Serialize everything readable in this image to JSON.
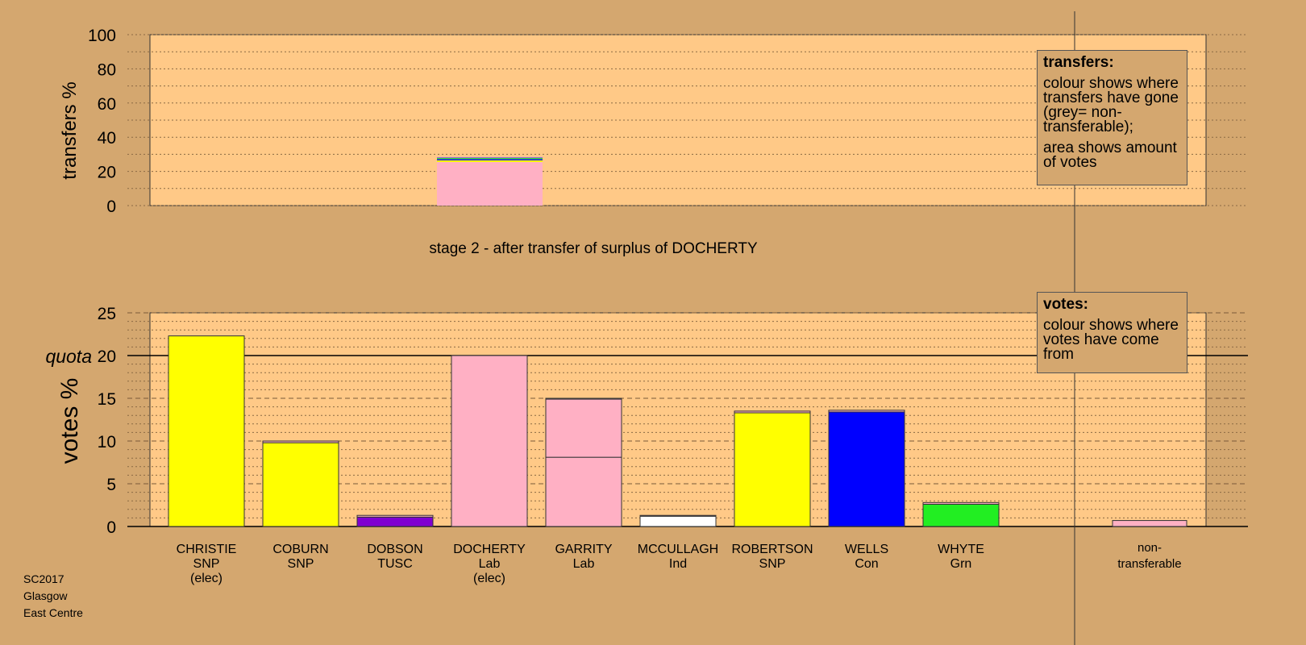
{
  "top_chart": {
    "ylabel": "transfers %",
    "yticks": [
      "0",
      "20",
      "40",
      "60",
      "80",
      "100"
    ],
    "legend": {
      "title": "transfers:",
      "paragraphs": [
        "colour shows where transfers have gone (grey= non-transferable);",
        "area shows amount of votes"
      ]
    }
  },
  "stage_title": "stage 2 - after transfer of surplus of DOCHERTY",
  "bottom_chart": {
    "ylabel": "votes %",
    "quota_label": "quota",
    "yticks": [
      "0",
      "5",
      "10",
      "15",
      "20",
      "25"
    ],
    "legend": {
      "title": "votes:",
      "paragraphs": [
        "colour shows where votes have come from"
      ]
    }
  },
  "candidates": [
    {
      "name": "CHRISTIE",
      "party": "SNP",
      "status": "(elec)"
    },
    {
      "name": "COBURN",
      "party": "SNP",
      "status": ""
    },
    {
      "name": "DOBSON",
      "party": "TUSC",
      "status": ""
    },
    {
      "name": "DOCHERTY",
      "party": "Lab",
      "status": "(elec)"
    },
    {
      "name": "GARRITY",
      "party": "Lab",
      "status": ""
    },
    {
      "name": "MCCULLAGH",
      "party": "Ind",
      "status": ""
    },
    {
      "name": "ROBERTSON",
      "party": "SNP",
      "status": ""
    },
    {
      "name": "WELLS",
      "party": "Con",
      "status": ""
    },
    {
      "name": "WHYTE",
      "party": "Grn",
      "status": ""
    }
  ],
  "nontransferable": {
    "line1": "non-",
    "line2": "transferable"
  },
  "footer": {
    "line1": "SC2017",
    "line2": "Glasgow",
    "line3": "East Centre"
  },
  "colors": {
    "background": "#d4a76f",
    "plot": "#ffc987",
    "SNP": "#ffff00",
    "Lab": "#ffb0c4",
    "TUSC": "#8000d0",
    "Ind": "#ffffff",
    "Con": "#0000ff",
    "Grn": "#22ee22",
    "nontransferable": "#c8c8c8"
  },
  "chart_data": [
    {
      "type": "bar",
      "title": "",
      "ylabel": "transfers %",
      "ylim": [
        0,
        100
      ],
      "grid": true,
      "legend_position": "top-right",
      "series": [
        {
          "category": "DOCHERTY",
          "segments": [
            {
              "party": "Lab",
              "value": 25.5
            },
            {
              "party": "SNP",
              "value": 1.0
            },
            {
              "party": "Con",
              "value": 0.7
            },
            {
              "party": "Grn",
              "value": 0.6
            },
            {
              "party": "TUSC",
              "value": 0.3
            },
            {
              "party": "nontransferable",
              "value": 0.4
            }
          ]
        }
      ]
    },
    {
      "type": "bar",
      "title": "stage 2 - after transfer of surplus of DOCHERTY",
      "ylabel": "votes %",
      "ylim": [
        0,
        25
      ],
      "quota": 20,
      "grid": true,
      "legend_position": "top-right",
      "categories": [
        "CHRISTIE",
        "COBURN",
        "DOBSON",
        "DOCHERTY",
        "GARRITY",
        "MCCULLAGH",
        "ROBERTSON",
        "WELLS",
        "WHYTE",
        "non-transferable"
      ],
      "bars": [
        {
          "category": "CHRISTIE",
          "segments": [
            {
              "party": "SNP",
              "value": 22.3
            }
          ]
        },
        {
          "category": "COBURN",
          "segments": [
            {
              "party": "SNP",
              "value": 9.8
            },
            {
              "party": "Lab",
              "value": 0.2
            }
          ]
        },
        {
          "category": "DOBSON",
          "segments": [
            {
              "party": "TUSC",
              "value": 1.1
            },
            {
              "party": "Lab",
              "value": 0.2
            }
          ]
        },
        {
          "category": "DOCHERTY",
          "segments": [
            {
              "party": "Lab",
              "value": 20.0
            }
          ]
        },
        {
          "category": "GARRITY",
          "segments": [
            {
              "party": "Lab",
              "value": 8.1
            },
            {
              "party": "Lab",
              "value": 6.8
            },
            {
              "party": "Lab",
              "value": 0.1
            }
          ]
        },
        {
          "category": "MCCULLAGH",
          "segments": [
            {
              "party": "Ind",
              "value": 1.2
            },
            {
              "party": "Lab",
              "value": 0.1
            }
          ]
        },
        {
          "category": "ROBERTSON",
          "segments": [
            {
              "party": "SNP",
              "value": 13.3
            },
            {
              "party": "Lab",
              "value": 0.2
            }
          ]
        },
        {
          "category": "WELLS",
          "segments": [
            {
              "party": "Con",
              "value": 13.4
            },
            {
              "party": "Lab",
              "value": 0.2
            }
          ]
        },
        {
          "category": "WHYTE",
          "segments": [
            {
              "party": "Grn",
              "value": 2.6
            },
            {
              "party": "Lab",
              "value": 0.2
            }
          ]
        },
        {
          "category": "non-transferable",
          "segments": [
            {
              "party": "Lab",
              "value": 0.7
            }
          ]
        }
      ]
    }
  ]
}
